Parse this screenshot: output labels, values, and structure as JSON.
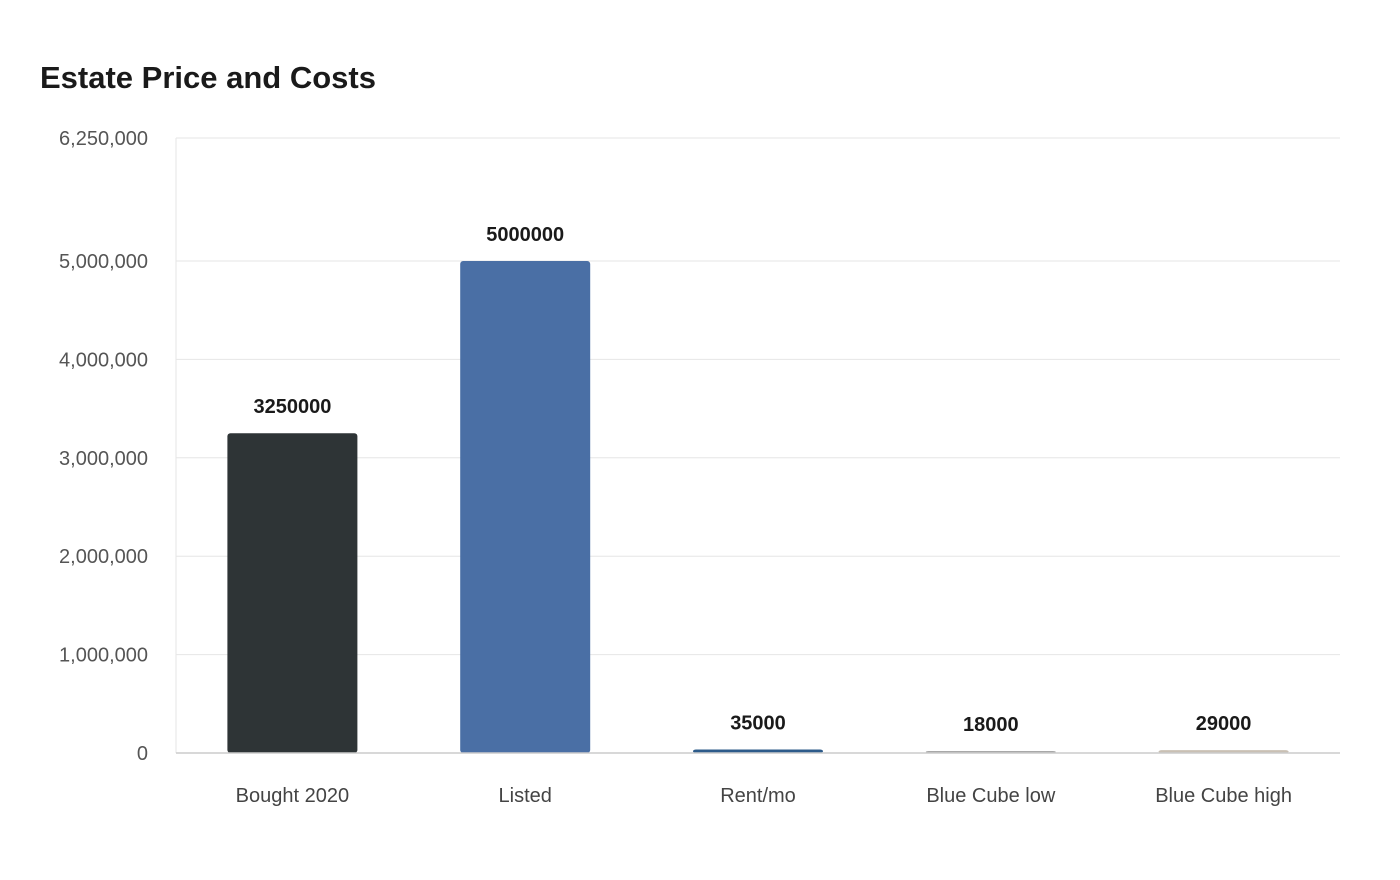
{
  "chart_data": {
    "type": "bar",
    "title": "Estate Price and Costs",
    "xlabel": "",
    "ylabel": "",
    "categories": [
      "Bought 2020",
      "Listed",
      "Rent/mo",
      "Blue Cube low",
      "Blue Cube high"
    ],
    "values": [
      3250000,
      5000000,
      35000,
      18000,
      29000
    ],
    "data_labels": [
      "3250000",
      "5000000",
      "35000",
      "18000",
      "29000"
    ],
    "colors": [
      "#2e3436",
      "#4a6fa5",
      "#2d5b8a",
      "#a8a8a8",
      "#c9c0b4"
    ],
    "ylim": [
      0,
      6250000
    ],
    "yticks": [
      0,
      1000000,
      2000000,
      3000000,
      4000000,
      5000000,
      6250000
    ],
    "ytick_labels": [
      "0",
      "1,000,000",
      "2,000,000",
      "3,000,000",
      "4,000,000",
      "5,000,000",
      "6,250,000"
    ],
    "grid": true,
    "legend": "none"
  }
}
